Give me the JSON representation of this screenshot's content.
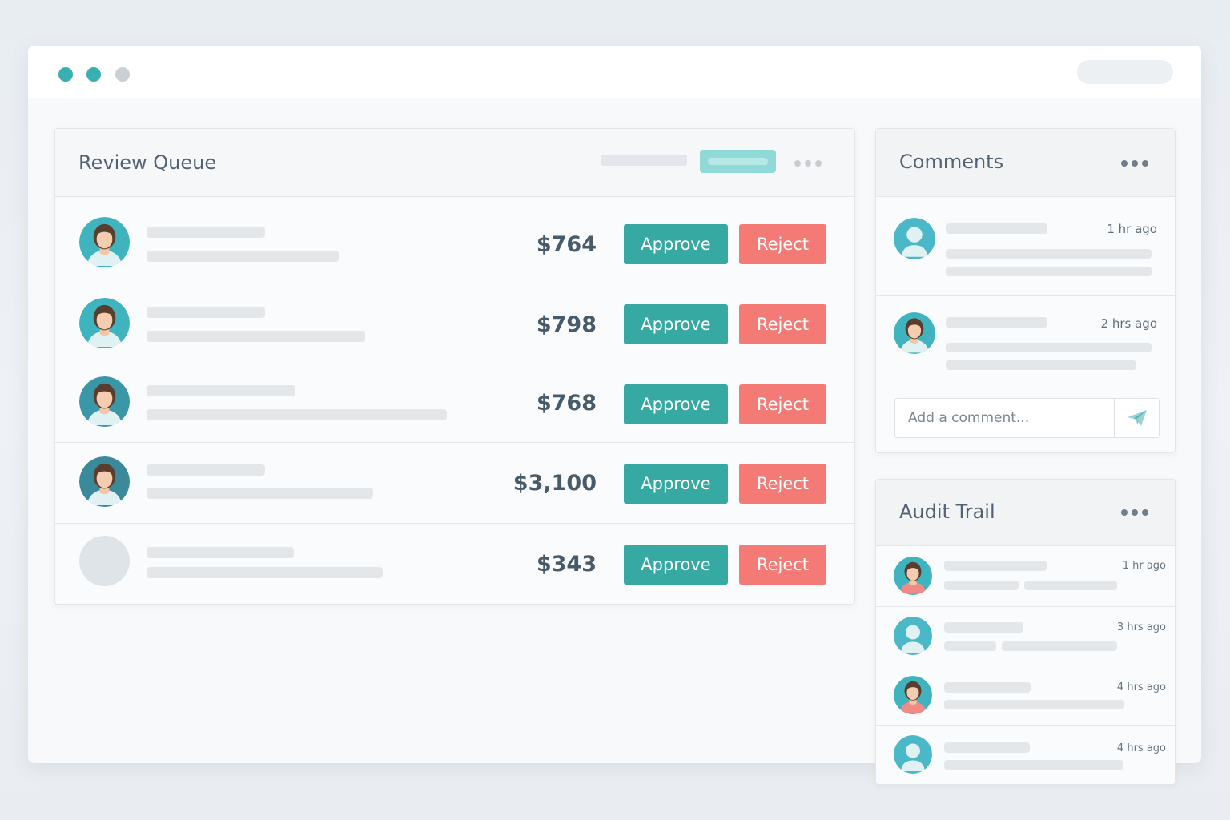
{
  "colors": {
    "teal": "#36a9a3",
    "teal_light": "#8fd9d6",
    "coral": "#f47a76",
    "window_dot_teal": "#3aaeb1",
    "window_dot_gray": "#c8d0d6",
    "dots_gray": "#c6cdd3",
    "dots_dark": "#6f7e8a"
  },
  "review_queue": {
    "title": "Review Queue",
    "rows": [
      {
        "amount": "$764",
        "approve_label": "Approve",
        "reject_label": "Reject",
        "avatar": "female-avatar-icon"
      },
      {
        "amount": "$798",
        "approve_label": "Approve",
        "reject_label": "Reject",
        "avatar": "female-avatar-icon"
      },
      {
        "amount": "$768",
        "approve_label": "Approve",
        "reject_label": "Reject",
        "avatar": "female-avatar-icon"
      },
      {
        "amount": "$3,100",
        "approve_label": "Approve",
        "reject_label": "Reject",
        "avatar": "female-avatar-icon"
      },
      {
        "amount": "$343",
        "approve_label": "Approve",
        "reject_label": "Reject",
        "avatar": "placeholder-avatar"
      }
    ]
  },
  "comments": {
    "title": "Comments",
    "items": [
      {
        "time": "1 hr ago",
        "avatar": "user-silhouette-icon"
      },
      {
        "time": "2 hrs ago",
        "avatar": "female-avatar-icon"
      }
    ],
    "input_placeholder": "Add a comment...",
    "send_icon": "send-icon"
  },
  "audit_trail": {
    "title": "Audit Trail",
    "items": [
      {
        "time": "1 hr ago",
        "avatar": "female-avatar-icon"
      },
      {
        "time": "3 hrs ago",
        "avatar": "user-silhouette-icon"
      },
      {
        "time": "4 hrs ago",
        "avatar": "female-avatar-icon"
      },
      {
        "time": "4 hrs ago",
        "avatar": "user-silhouette-icon"
      }
    ]
  }
}
